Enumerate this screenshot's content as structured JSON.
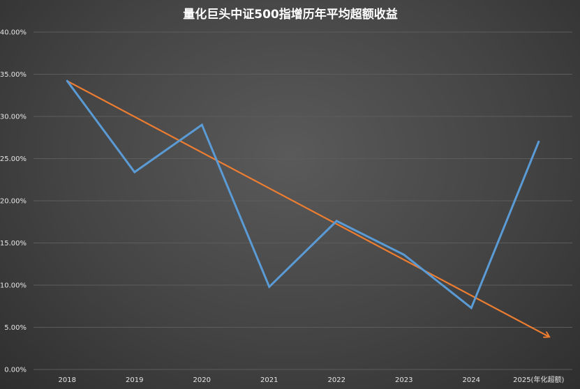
{
  "chart_data": {
    "type": "line",
    "title": "量化巨头中证500指增历年平均超额收益",
    "categories": [
      "2018",
      "2019",
      "2020",
      "2021",
      "2022",
      "2023",
      "2024",
      "2025(年化超额)"
    ],
    "y_tick_labels": [
      "0.00%",
      "5.00%",
      "10.00%",
      "15.00%",
      "20.00%",
      "25.00%",
      "30.00%",
      "35.00%",
      "40.00%"
    ],
    "ylim": [
      0,
      40
    ],
    "grid": true,
    "legend": "none",
    "series": [
      {
        "values": [
          34.2,
          23.4,
          29.0,
          9.8,
          17.6,
          13.6,
          7.3,
          27.0
        ],
        "color": "#5b9bd5"
      }
    ],
    "trend_arrow": {
      "from": [
        0,
        34.2
      ],
      "to": [
        7.15,
        3.9
      ],
      "color": "#ed7d31"
    }
  }
}
